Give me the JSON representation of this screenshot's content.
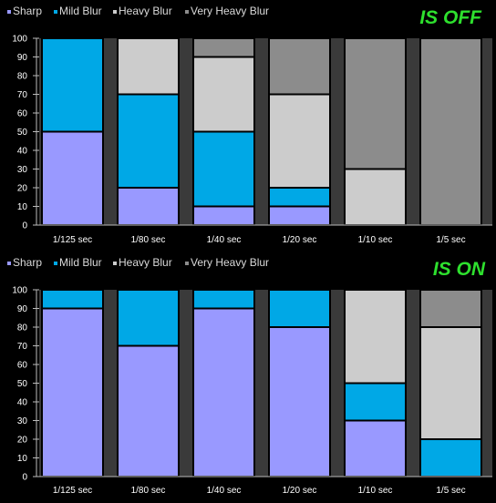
{
  "colors": {
    "background": "#000000",
    "plot_background": "#3a3a3a",
    "sharp": "#9999ff",
    "mild_blur": "#00a8e6",
    "heavy_blur": "#cccccc",
    "very_heavy_blur": "#8c8c8c",
    "title": "#2ee02e"
  },
  "chart_data": [
    {
      "type": "bar",
      "stacked": true,
      "title": "IS OFF",
      "categories": [
        "1/125 sec",
        "1/80 sec",
        "1/40 sec",
        "1/20 sec",
        "1/10 sec",
        "1/5 sec"
      ],
      "series": [
        {
          "name": "Sharp",
          "values": [
            50,
            20,
            10,
            10,
            0,
            0
          ]
        },
        {
          "name": "Mild Blur",
          "values": [
            50,
            50,
            40,
            10,
            0,
            0
          ]
        },
        {
          "name": "Heavy Blur",
          "values": [
            0,
            30,
            40,
            50,
            30,
            0
          ]
        },
        {
          "name": "Very Heavy Blur",
          "values": [
            0,
            0,
            10,
            30,
            70,
            100
          ]
        }
      ],
      "ylim": [
        0,
        100
      ],
      "yticks": [
        0,
        10,
        20,
        30,
        40,
        50,
        60,
        70,
        80,
        90,
        100
      ],
      "legend_position": "top-left",
      "grid": false
    },
    {
      "type": "bar",
      "stacked": true,
      "title": "IS ON",
      "categories": [
        "1/125 sec",
        "1/80 sec",
        "1/40 sec",
        "1/20 sec",
        "1/10 sec",
        "1/5 sec"
      ],
      "series": [
        {
          "name": "Sharp",
          "values": [
            90,
            70,
            90,
            80,
            30,
            0
          ]
        },
        {
          "name": "Mild Blur",
          "values": [
            10,
            30,
            10,
            20,
            20,
            20
          ]
        },
        {
          "name": "Heavy Blur",
          "values": [
            0,
            0,
            0,
            0,
            50,
            60
          ]
        },
        {
          "name": "Very Heavy Blur",
          "values": [
            0,
            0,
            0,
            0,
            0,
            20
          ]
        }
      ],
      "ylim": [
        0,
        100
      ],
      "yticks": [
        0,
        10,
        20,
        30,
        40,
        50,
        60,
        70,
        80,
        90,
        100
      ],
      "legend_position": "top-left",
      "grid": false
    }
  ]
}
